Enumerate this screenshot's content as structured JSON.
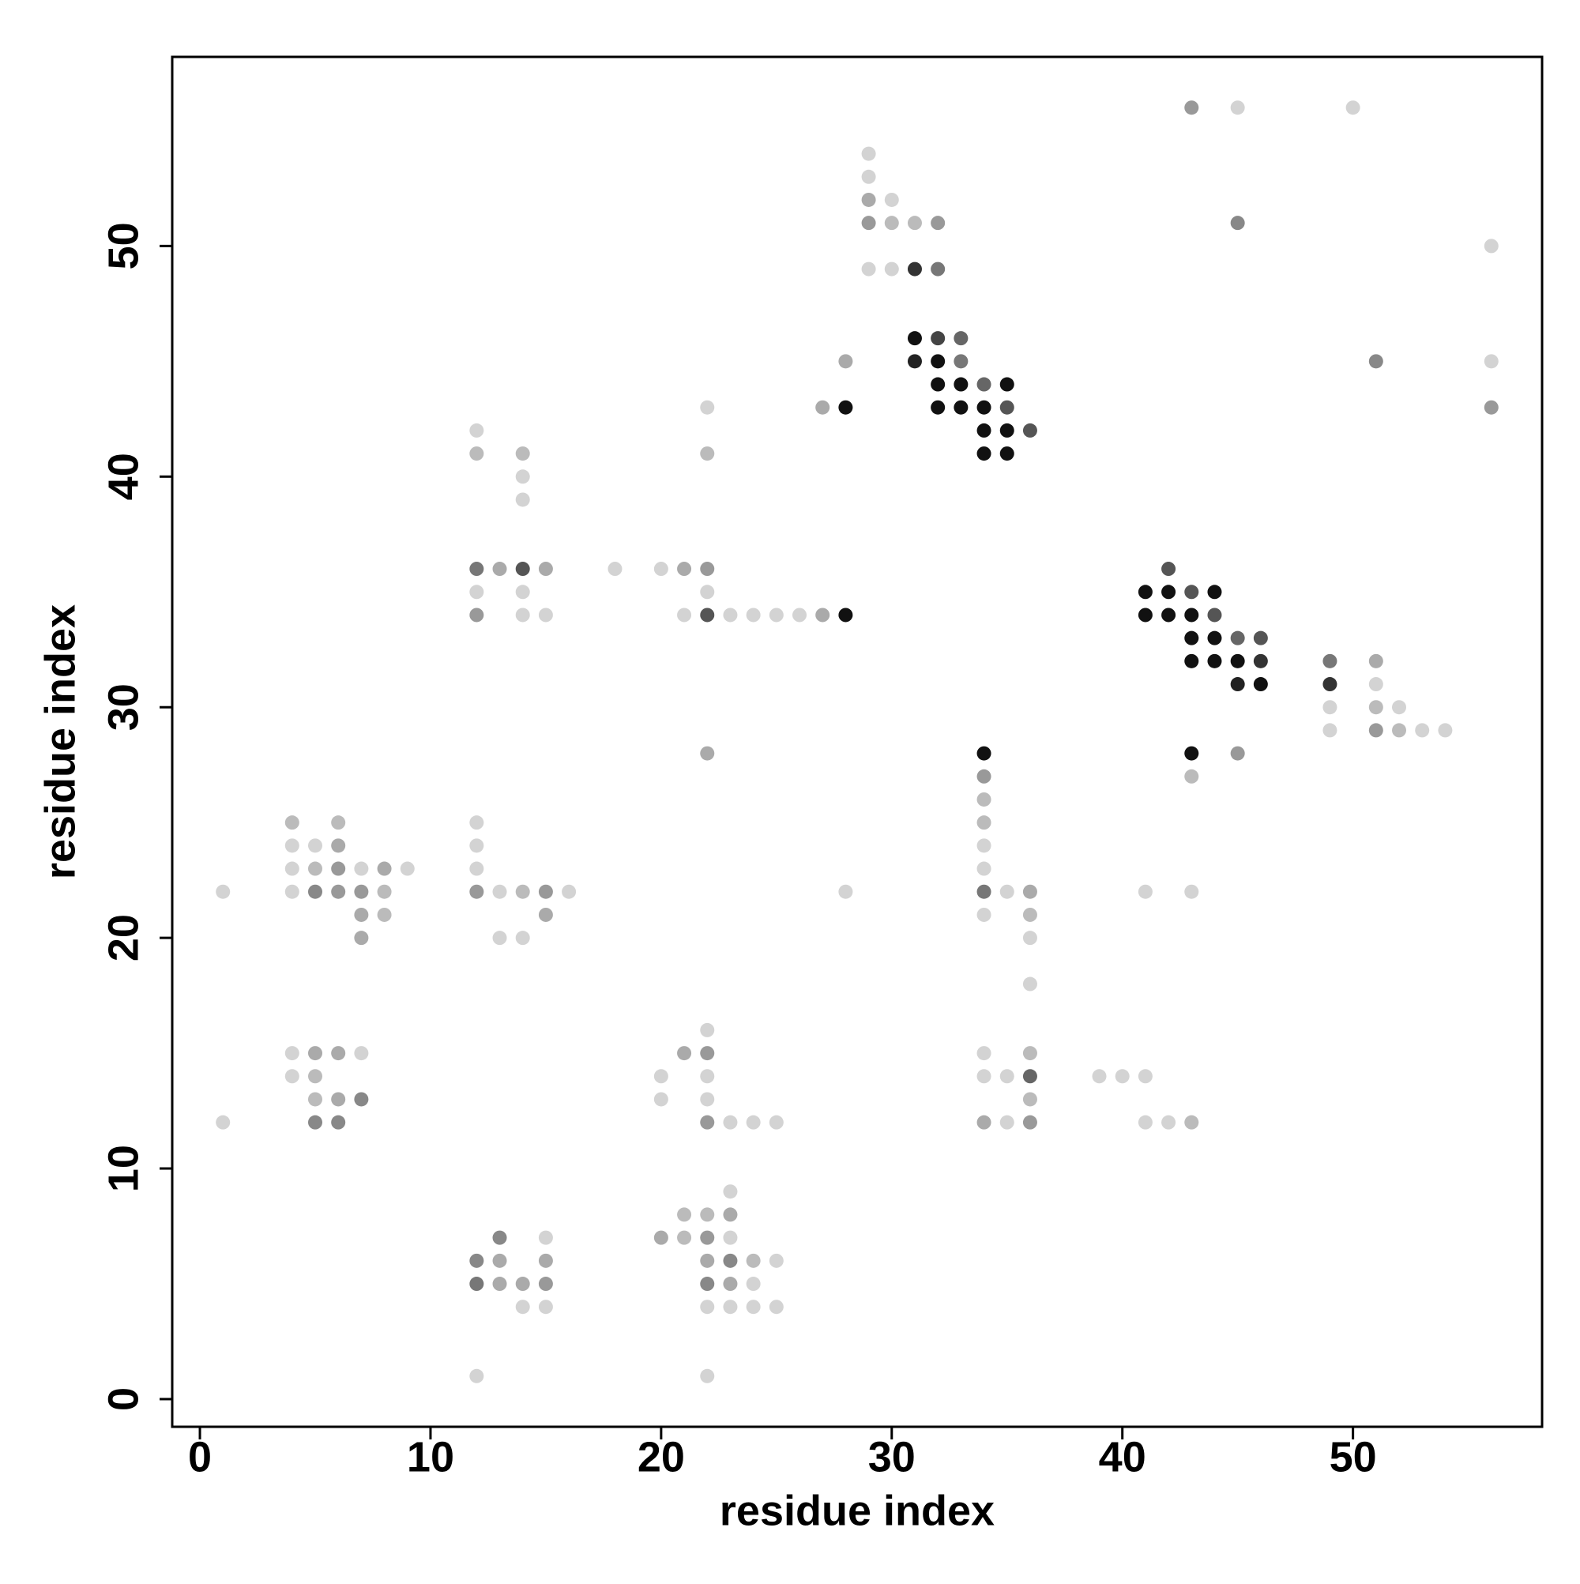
{
  "chart_data": {
    "type": "scatter",
    "xlabel": "residue index",
    "ylabel": "residue index",
    "xlim": [
      -1.2,
      58.2
    ],
    "ylim": [
      -1.2,
      58.2
    ],
    "xticks": [
      0,
      10,
      20,
      30,
      40,
      50
    ],
    "yticks": [
      0,
      10,
      20,
      30,
      40,
      50
    ],
    "x": [
      43,
      45,
      50,
      29,
      29,
      29,
      30,
      29,
      30,
      31,
      32,
      45,
      56,
      29,
      30,
      31,
      32,
      31,
      32,
      33,
      28,
      31,
      32,
      33,
      51,
      56,
      32,
      33,
      34,
      35,
      22,
      27,
      28,
      32,
      33,
      34,
      35,
      56,
      12,
      34,
      35,
      36,
      12,
      14,
      22,
      34,
      35,
      14,
      14,
      12,
      13,
      14,
      15,
      18,
      20,
      21,
      22,
      42,
      12,
      14,
      22,
      41,
      42,
      43,
      44,
      12,
      14,
      15,
      21,
      22,
      23,
      24,
      25,
      26,
      27,
      28,
      41,
      42,
      43,
      44,
      43,
      44,
      45,
      46,
      43,
      44,
      45,
      46,
      49,
      51,
      45,
      46,
      49,
      51,
      49,
      51,
      52,
      49,
      51,
      52,
      53,
      54,
      22,
      34,
      43,
      45,
      34,
      43,
      34,
      4,
      6,
      12,
      34,
      4,
      5,
      6,
      12,
      34,
      4,
      5,
      6,
      7,
      8,
      9,
      12,
      34,
      1,
      4,
      5,
      6,
      7,
      8,
      12,
      13,
      14,
      15,
      16,
      28,
      34,
      35,
      36,
      41,
      43,
      7,
      8,
      15,
      34,
      36,
      7,
      13,
      14,
      36,
      36,
      22,
      4,
      5,
      6,
      7,
      21,
      22,
      34,
      36,
      4,
      5,
      20,
      22,
      34,
      35,
      36,
      39,
      40,
      41,
      5,
      6,
      7,
      20,
      22,
      36,
      1,
      5,
      6,
      22,
      23,
      24,
      25,
      34,
      35,
      36,
      41,
      42,
      43,
      23,
      21,
      22,
      23,
      13,
      15,
      20,
      21,
      22,
      23,
      12,
      13,
      15,
      22,
      23,
      24,
      25,
      12,
      13,
      14,
      15,
      22,
      23,
      24,
      14,
      15,
      22,
      23,
      24,
      25,
      12,
      22
    ],
    "y": [
      56,
      56,
      56,
      54,
      53,
      52,
      52,
      51,
      51,
      51,
      51,
      51,
      50,
      49,
      49,
      49,
      49,
      46,
      46,
      46,
      45,
      45,
      45,
      45,
      45,
      45,
      44,
      44,
      44,
      44,
      43,
      43,
      43,
      43,
      43,
      43,
      43,
      43,
      42,
      42,
      42,
      42,
      41,
      41,
      41,
      41,
      41,
      40,
      39,
      36,
      36,
      36,
      36,
      36,
      36,
      36,
      36,
      36,
      35,
      35,
      35,
      35,
      35,
      35,
      35,
      34,
      34,
      34,
      34,
      34,
      34,
      34,
      34,
      34,
      34,
      34,
      34,
      34,
      34,
      34,
      33,
      33,
      33,
      33,
      32,
      32,
      32,
      32,
      32,
      32,
      31,
      31,
      31,
      31,
      30,
      30,
      30,
      29,
      29,
      29,
      29,
      29,
      28,
      28,
      28,
      28,
      27,
      27,
      26,
      25,
      25,
      25,
      25,
      24,
      24,
      24,
      24,
      24,
      23,
      23,
      23,
      23,
      23,
      23,
      23,
      23,
      22,
      22,
      22,
      22,
      22,
      22,
      22,
      22,
      22,
      22,
      22,
      22,
      22,
      22,
      22,
      22,
      22,
      21,
      21,
      21,
      21,
      21,
      20,
      20,
      20,
      20,
      18,
      16,
      15,
      15,
      15,
      15,
      15,
      15,
      15,
      15,
      14,
      14,
      14,
      14,
      14,
      14,
      14,
      14,
      14,
      14,
      13,
      13,
      13,
      13,
      13,
      13,
      12,
      12,
      12,
      12,
      12,
      12,
      12,
      12,
      12,
      12,
      12,
      12,
      12,
      9,
      8,
      8,
      8,
      7,
      7,
      7,
      7,
      7,
      7,
      6,
      6,
      6,
      6,
      6,
      6,
      6,
      5,
      5,
      5,
      5,
      5,
      5,
      5,
      4,
      4,
      4,
      4,
      4,
      4,
      1,
      1
    ],
    "colors": [
      "#999999",
      "#d3d3d3",
      "#d3d3d3",
      "#d3d3d3",
      "#d3d3d3",
      "#aaaaaa",
      "#d3d3d3",
      "#999999",
      "#bbbbbb",
      "#bbbbbb",
      "#999999",
      "#888888",
      "#d3d3d3",
      "#d3d3d3",
      "#d3d3d3",
      "#333333",
      "#777777",
      "#111111",
      "#444444",
      "#666666",
      "#aaaaaa",
      "#222222",
      "#111111",
      "#777777",
      "#888888",
      "#d3d3d3",
      "#111111",
      "#111111",
      "#666666",
      "#111111",
      "#d3d3d3",
      "#aaaaaa",
      "#111111",
      "#111111",
      "#111111",
      "#111111",
      "#555555",
      "#999999",
      "#d3d3d3",
      "#111111",
      "#111111",
      "#555555",
      "#bbbbbb",
      "#bbbbbb",
      "#bbbbbb",
      "#111111",
      "#111111",
      "#d3d3d3",
      "#d3d3d3",
      "#777777",
      "#aaaaaa",
      "#555555",
      "#aaaaaa",
      "#d3d3d3",
      "#d3d3d3",
      "#aaaaaa",
      "#999999",
      "#555555",
      "#d3d3d3",
      "#d3d3d3",
      "#d3d3d3",
      "#111111",
      "#111111",
      "#555555",
      "#111111",
      "#999999",
      "#d3d3d3",
      "#d3d3d3",
      "#d3d3d3",
      "#555555",
      "#d3d3d3",
      "#d3d3d3",
      "#d3d3d3",
      "#d3d3d3",
      "#aaaaaa",
      "#111111",
      "#111111",
      "#111111",
      "#111111",
      "#555555",
      "#111111",
      "#111111",
      "#666666",
      "#555555",
      "#111111",
      "#111111",
      "#111111",
      "#333333",
      "#777777",
      "#aaaaaa",
      "#222222",
      "#111111",
      "#333333",
      "#d3d3d3",
      "#d3d3d3",
      "#bbbbbb",
      "#d3d3d3",
      "#d3d3d3",
      "#999999",
      "#bbbbbb",
      "#d3d3d3",
      "#d3d3d3",
      "#aaaaaa",
      "#111111",
      "#111111",
      "#999999",
      "#999999",
      "#bbbbbb",
      "#bbbbbb",
      "#bbbbbb",
      "#bbbbbb",
      "#d3d3d3",
      "#bbbbbb",
      "#d3d3d3",
      "#d3d3d3",
      "#aaaaaa",
      "#d3d3d3",
      "#d3d3d3",
      "#d3d3d3",
      "#bbbbbb",
      "#999999",
      "#d3d3d3",
      "#aaaaaa",
      "#d3d3d3",
      "#d3d3d3",
      "#d3d3d3",
      "#d3d3d3",
      "#d3d3d3",
      "#888888",
      "#999999",
      "#999999",
      "#bbbbbb",
      "#999999",
      "#d3d3d3",
      "#bbbbbb",
      "#999999",
      "#d3d3d3",
      "#d3d3d3",
      "#777777",
      "#d3d3d3",
      "#aaaaaa",
      "#d3d3d3",
      "#d3d3d3",
      "#aaaaaa",
      "#bbbbbb",
      "#aaaaaa",
      "#d3d3d3",
      "#bbbbbb",
      "#aaaaaa",
      "#d3d3d3",
      "#d3d3d3",
      "#d3d3d3",
      "#d3d3d3",
      "#d3d3d3",
      "#d3d3d3",
      "#aaaaaa",
      "#aaaaaa",
      "#d3d3d3",
      "#aaaaaa",
      "#999999",
      "#d3d3d3",
      "#bbbbbb",
      "#d3d3d3",
      "#bbbbbb",
      "#d3d3d3",
      "#d3d3d3",
      "#d3d3d3",
      "#d3d3d3",
      "#666666",
      "#d3d3d3",
      "#d3d3d3",
      "#d3d3d3",
      "#bbbbbb",
      "#aaaaaa",
      "#888888",
      "#d3d3d3",
      "#d3d3d3",
      "#bbbbbb",
      "#d3d3d3",
      "#888888",
      "#888888",
      "#999999",
      "#d3d3d3",
      "#d3d3d3",
      "#d3d3d3",
      "#aaaaaa",
      "#d3d3d3",
      "#999999",
      "#d3d3d3",
      "#d3d3d3",
      "#bbbbbb",
      "#d3d3d3",
      "#bbbbbb",
      "#bbbbbb",
      "#aaaaaa",
      "#888888",
      "#d3d3d3",
      "#aaaaaa",
      "#bbbbbb",
      "#999999",
      "#d3d3d3",
      "#888888",
      "#aaaaaa",
      "#aaaaaa",
      "#aaaaaa",
      "#888888",
      "#bbbbbb",
      "#d3d3d3",
      "#777777",
      "#aaaaaa",
      "#aaaaaa",
      "#999999",
      "#888888",
      "#aaaaaa",
      "#d3d3d3",
      "#d3d3d3",
      "#d3d3d3",
      "#d3d3d3",
      "#d3d3d3",
      "#d3d3d3",
      "#d3d3d3",
      "#d3d3d3",
      "#d3d3d3"
    ]
  }
}
